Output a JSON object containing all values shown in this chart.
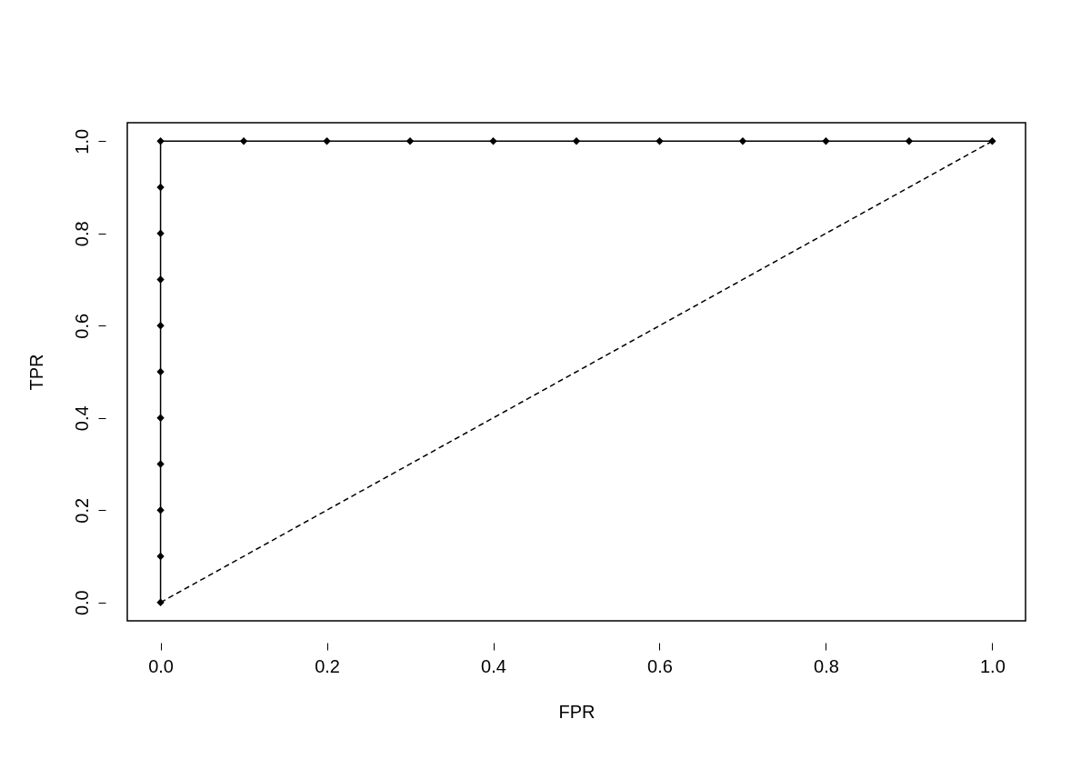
{
  "chart_data": {
    "type": "line",
    "xlabel": "FPR",
    "ylabel": "TPR",
    "xlim": [
      -0.04,
      1.04
    ],
    "ylim": [
      -0.04,
      1.04
    ],
    "xticks": [
      {
        "value": 0,
        "label": "0.0"
      },
      {
        "value": 0.2,
        "label": "0.2"
      },
      {
        "value": 0.4,
        "label": "0.4"
      },
      {
        "value": 0.6,
        "label": "0.6"
      },
      {
        "value": 0.8,
        "label": "0.8"
      },
      {
        "value": 1,
        "label": "1.0"
      }
    ],
    "yticks": [
      {
        "value": 0,
        "label": "0.0"
      },
      {
        "value": 0.2,
        "label": "0.2"
      },
      {
        "value": 0.4,
        "label": "0.4"
      },
      {
        "value": 0.6,
        "label": "0.6"
      },
      {
        "value": 0.8,
        "label": "0.8"
      },
      {
        "value": 1,
        "label": "1.0"
      }
    ],
    "grid": false,
    "series": [
      {
        "color": "#000000",
        "marker": "diamond",
        "line_style": "solid",
        "x": [
          0,
          0,
          0,
          0,
          0,
          0,
          0,
          0,
          0,
          0,
          0,
          0.1,
          0.2,
          0.3,
          0.4,
          0.5,
          0.6,
          0.7,
          0.8,
          0.9,
          1
        ],
        "values": [
          0,
          0.1,
          0.2,
          0.3,
          0.4,
          0.5,
          0.6,
          0.7,
          0.8,
          0.9,
          1,
          1,
          1,
          1,
          1,
          1,
          1,
          1,
          1,
          1,
          1
        ]
      },
      {
        "color": "#000000",
        "marker": "none",
        "line_style": "dashed",
        "x": [
          0,
          1
        ],
        "values": [
          0,
          1
        ]
      }
    ]
  }
}
